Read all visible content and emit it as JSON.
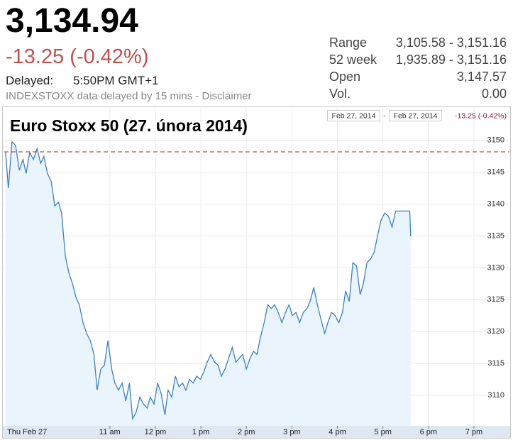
{
  "header": {
    "price": "3,134.94",
    "change": "-13.25 (-0.42%)",
    "delayed_label": "Delayed:",
    "delayed_time": "5:50PM GMT+1",
    "disclaimer": "INDEXSTOXX data delayed by 15 mins - Disclaimer"
  },
  "stats": [
    [
      "Range",
      "3,105.58 - 3,151.16"
    ],
    [
      "52 week",
      "1,935.89 - 3,151.16"
    ],
    [
      "Open",
      "3,147.57"
    ],
    [
      "Vol.",
      "0.00"
    ]
  ],
  "chart_data": {
    "type": "line",
    "title": "Euro Stoxx 50 (27. února 2014)",
    "range_start": "Feb 27, 2014",
    "range_separator": "-",
    "range_end": "Feb 27, 2014",
    "range_change": "-13.25 (-0.42%)",
    "color": "#3f7fbf",
    "fill_color": "#eaf4fc",
    "reference_color": "#b02a2a",
    "reference_line": 3148.19,
    "xlim": [
      8.68,
      19.78
    ],
    "ylim": [
      3105.2,
      3155.1
    ],
    "grid": true,
    "xticks": [
      {
        "value": 8.68,
        "label": "Thu Feb 27"
      },
      {
        "value": 11,
        "label": "11 am"
      },
      {
        "value": 12,
        "label": "12 pm"
      },
      {
        "value": 13,
        "label": "1 pm"
      },
      {
        "value": 14,
        "label": "2 pm"
      },
      {
        "value": 15,
        "label": "3 pm"
      },
      {
        "value": 16,
        "label": "4 pm"
      },
      {
        "value": 17,
        "label": "5 pm"
      },
      {
        "value": 18,
        "label": "6 pm"
      },
      {
        "value": 19,
        "label": "7 pm"
      }
    ],
    "yticks": [
      3110,
      3115,
      3120,
      3125,
      3130,
      3135,
      3140,
      3145,
      3150
    ],
    "x": [
      8.71,
      8.77,
      8.85,
      8.93,
      9.01,
      9.09,
      9.16,
      9.24,
      9.32,
      9.4,
      9.48,
      9.55,
      9.63,
      9.71,
      9.79,
      9.87,
      9.94,
      10.02,
      10.1,
      10.18,
      10.26,
      10.33,
      10.41,
      10.49,
      10.57,
      10.65,
      10.72,
      10.8,
      10.88,
      10.96,
      11.04,
      11.11,
      11.19,
      11.27,
      11.35,
      11.43,
      11.5,
      11.58,
      11.66,
      11.74,
      11.82,
      11.89,
      11.97,
      12.05,
      12.13,
      12.21,
      12.28,
      12.36,
      12.44,
      12.52,
      12.6,
      12.67,
      12.75,
      12.83,
      12.91,
      12.99,
      13.06,
      13.14,
      13.22,
      13.3,
      13.38,
      13.45,
      13.53,
      13.61,
      13.69,
      13.77,
      13.84,
      13.92,
      14.0,
      14.08,
      14.16,
      14.23,
      14.31,
      14.39,
      14.47,
      14.55,
      14.62,
      14.7,
      14.78,
      14.86,
      14.94,
      15.01,
      15.09,
      15.17,
      15.25,
      15.33,
      15.4,
      15.48,
      15.56,
      15.64,
      15.72,
      15.79,
      15.87,
      15.95,
      16.03,
      16.11,
      16.18,
      16.26,
      16.34,
      16.42,
      16.5,
      16.57,
      16.65,
      16.73,
      16.81,
      16.89,
      16.96,
      17.04,
      17.12,
      17.2,
      17.28,
      17.35,
      17.43,
      17.51,
      17.59,
      17.61
    ],
    "values": [
      3148.1,
      3142.5,
      3149.8,
      3149.2,
      3145.3,
      3147.0,
      3144.8,
      3148.1,
      3147.0,
      3148.7,
      3146.4,
      3147.5,
      3144.8,
      3143.6,
      3139.7,
      3140.3,
      3138.6,
      3131.9,
      3129.2,
      3127.5,
      3125.3,
      3124.2,
      3121.4,
      3119.7,
      3118.6,
      3116.4,
      3110.8,
      3114.1,
      3114.7,
      3118.6,
      3114.1,
      3111.9,
      3110.8,
      3111.9,
      3109.1,
      3111.9,
      3106.3,
      3107.4,
      3109.7,
      3108.6,
      3108.0,
      3109.7,
      3108.6,
      3111.9,
      3110.2,
      3106.9,
      3110.8,
      3109.7,
      3113.0,
      3111.3,
      3111.9,
      3110.8,
      3112.5,
      3111.9,
      3113.0,
      3112.5,
      3113.6,
      3115.2,
      3116.4,
      3115.2,
      3114.7,
      3113.0,
      3114.1,
      3115.8,
      3117.5,
      3115.2,
      3115.8,
      3116.4,
      3114.1,
      3115.8,
      3116.9,
      3116.4,
      3119.1,
      3121.4,
      3124.2,
      3123.6,
      3124.2,
      3123.0,
      3121.4,
      3123.0,
      3124.2,
      3122.5,
      3123.0,
      3121.4,
      3123.0,
      3123.6,
      3124.7,
      3126.9,
      3124.2,
      3121.9,
      3119.7,
      3121.4,
      3123.0,
      3122.5,
      3121.4,
      3123.0,
      3126.4,
      3124.7,
      3130.8,
      3130.3,
      3125.8,
      3127.5,
      3130.8,
      3131.4,
      3132.5,
      3135.3,
      3137.5,
      3138.6,
      3138.1,
      3136.4,
      3138.9,
      3138.9,
      3138.9,
      3138.9,
      3138.9,
      3134.94
    ]
  }
}
